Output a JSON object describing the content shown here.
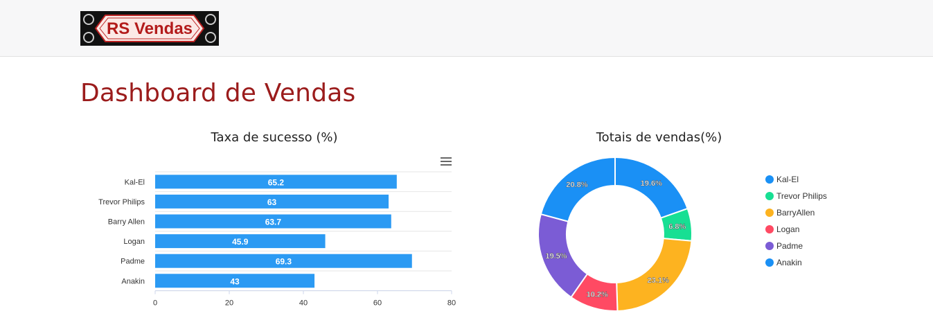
{
  "header": {
    "logo_text": "RS Vendas"
  },
  "main": {
    "title": "Dashboard de Vendas"
  },
  "chart_data": [
    {
      "type": "bar",
      "orientation": "horizontal",
      "title": "Taxa de sucesso (%)",
      "categories": [
        "Kal-El",
        "Trevor Philips",
        "Barry Allen",
        "Logan",
        "Padme",
        "Anakin"
      ],
      "values": [
        65.2,
        63,
        63.7,
        45.9,
        69.3,
        43
      ],
      "value_labels": [
        "65.2",
        "63",
        "63.7",
        "45.9",
        "69.3",
        "43"
      ],
      "xlim": [
        0,
        80
      ],
      "ticks": [
        0,
        20,
        40,
        60,
        80
      ],
      "color": "#2b9af3",
      "grid": true
    },
    {
      "type": "pie",
      "variant": "donut",
      "title": "Totais de vendas(%)",
      "labels": [
        "Kal-El",
        "Trevor Philips",
        "BarryAllen",
        "Logan",
        "Padme",
        "Anakin"
      ],
      "values": [
        19.6,
        6.8,
        23.1,
        10.2,
        19.5,
        20.8
      ],
      "value_labels": [
        "19.6%",
        "6.8%",
        "23.1%",
        "10.2%",
        "19.5%",
        "20.8%"
      ],
      "colors": [
        "#1a90f5",
        "#17df93",
        "#fdb320",
        "#ff4a63",
        "#7b5cd5",
        "#1a90f5"
      ],
      "legend_position": "right"
    }
  ]
}
